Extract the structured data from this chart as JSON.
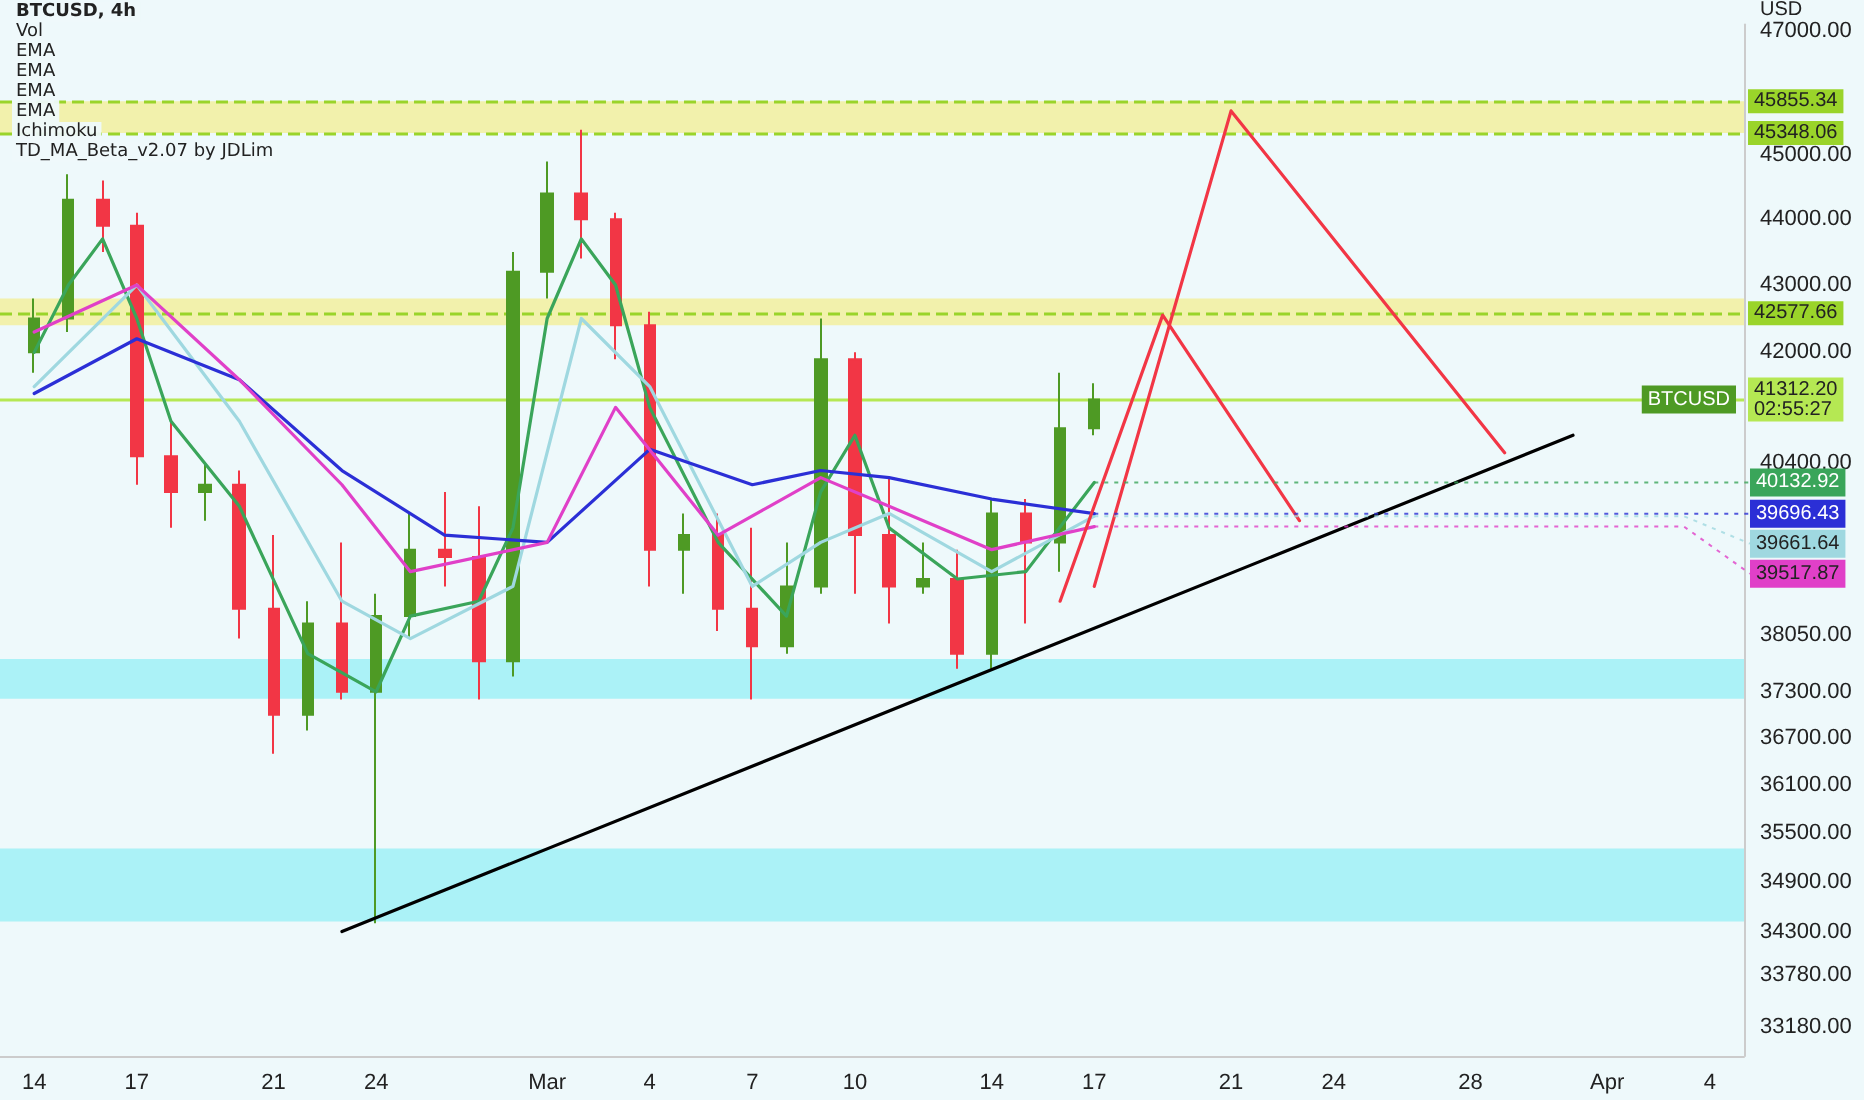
{
  "chart_data": {
    "type": "candlestick",
    "title": "BTCUSD, 4h",
    "ylabel": "USD",
    "log": true,
    "x": [
      "--02-14",
      "--02-15",
      "--02-16",
      "--02-17",
      "--02-18",
      "--02-19",
      "--02-20",
      "--02-21",
      "--02-22",
      "--02-23",
      "--02-24",
      "--02-25",
      "--02-26",
      "--02-27",
      "--02-28",
      "--03-01",
      "--03-02",
      "--03-03",
      "--03-04",
      "--03-05",
      "--03-06",
      "--03-07",
      "--03-08",
      "--03-09",
      "--03-10",
      "--03-11",
      "--03-12",
      "--03-13",
      "--03-14",
      "--03-15",
      "--03-16",
      "--03-17"
    ],
    "series": [
      {
        "name": "BTCUSD",
        "ohlc": [
          [
            42000,
            42800,
            41700,
            42500
          ],
          [
            42500,
            44700,
            42300,
            44300
          ],
          [
            44300,
            44600,
            43500,
            43900
          ],
          [
            43900,
            44100,
            40100,
            40500
          ],
          [
            40500,
            41000,
            39500,
            40000
          ],
          [
            40000,
            40400,
            39600,
            40100
          ],
          [
            40100,
            40300,
            38000,
            38400
          ],
          [
            38400,
            39400,
            36500,
            37000
          ],
          [
            37000,
            38500,
            36800,
            38200
          ],
          [
            38200,
            39300,
            37200,
            37300
          ],
          [
            37300,
            38600,
            34400,
            38300
          ],
          [
            38300,
            39700,
            38000,
            39200
          ],
          [
            39200,
            40000,
            38700,
            39100
          ],
          [
            39100,
            39800,
            37200,
            37700
          ],
          [
            37700,
            43500,
            37500,
            43200
          ],
          [
            43200,
            44900,
            42800,
            44400
          ],
          [
            44400,
            45400,
            43400,
            44000
          ],
          [
            44000,
            44100,
            41900,
            42400
          ],
          [
            42400,
            42600,
            38700,
            39200
          ],
          [
            39200,
            39700,
            38600,
            39400
          ],
          [
            39400,
            39700,
            38100,
            38400
          ],
          [
            38400,
            39500,
            37200,
            37900
          ],
          [
            37900,
            39300,
            37800,
            38700
          ],
          [
            38700,
            42500,
            38600,
            41900
          ],
          [
            41900,
            42000,
            38600,
            39400
          ],
          [
            39400,
            40200,
            38200,
            38700
          ],
          [
            38700,
            39300,
            38600,
            38800
          ],
          [
            38800,
            39200,
            37600,
            37800
          ],
          [
            37800,
            39900,
            37600,
            39700
          ],
          [
            39700,
            39900,
            38200,
            39300
          ],
          [
            39300,
            41700,
            38900,
            40900
          ],
          [
            40900,
            41550,
            40800,
            41312.2
          ]
        ]
      },
      {
        "type": "line",
        "color": "#3aa55a",
        "x": [
          "--02-14",
          "--02-15",
          "--02-16",
          "--02-17",
          "--02-18",
          "--02-20",
          "--02-22",
          "--02-24",
          "--02-25",
          "--02-27",
          "--02-28",
          "--03-01",
          "--03-02",
          "--03-03",
          "--03-04",
          "--03-06",
          "--03-08",
          "--03-09",
          "--03-10",
          "--03-11",
          "--03-13",
          "--03-15",
          "--03-17"
        ],
        "values": [
          42000,
          43000,
          43700,
          42500,
          41000,
          39800,
          37800,
          37300,
          38300,
          38500,
          39500,
          42500,
          43700,
          43000,
          41200,
          39300,
          38300,
          40000,
          40800,
          39500,
          38800,
          38900,
          40132.92
        ]
      },
      {
        "type": "line",
        "color": "#9fd8e0",
        "x": [
          "--02-14",
          "--02-17",
          "--02-20",
          "--02-23",
          "--02-25",
          "--02-28",
          "--03-02",
          "--03-04",
          "--03-07",
          "--03-09",
          "--03-11",
          "--03-14",
          "--03-17"
        ],
        "values": [
          41500,
          43000,
          41000,
          38500,
          38000,
          38700,
          42500,
          41500,
          38700,
          39300,
          39700,
          38900,
          39661.64
        ]
      },
      {
        "type": "line",
        "color": "#2b2fd6",
        "x": [
          "--02-14",
          "--02-17",
          "--02-20",
          "--02-23",
          "--02-26",
          "--03-01",
          "--03-04",
          "--03-07",
          "--03-09",
          "--03-11",
          "--03-14",
          "--03-17"
        ],
        "values": [
          41400,
          42200,
          41600,
          40300,
          39400,
          39300,
          40600,
          40100,
          40300,
          40200,
          39900,
          39696.43
        ]
      },
      {
        "type": "line",
        "color": "#e040c8",
        "x": [
          "--02-14",
          "--02-17",
          "--02-20",
          "--02-23",
          "--02-25",
          "--03-01",
          "--03-03",
          "--03-06",
          "--03-09",
          "--03-11",
          "--03-14",
          "--03-17"
        ],
        "values": [
          42300,
          43000,
          41600,
          40100,
          38900,
          39300,
          41200,
          39400,
          40200,
          39800,
          39200,
          39517.87
        ]
      },
      {
        "type": "line",
        "color": "#000000",
        "x": [
          "--02-23",
          "--03-31"
        ],
        "values": [
          34300,
          40800
        ]
      },
      {
        "type": "line",
        "color": "#f23645",
        "x": [
          "--03-16",
          "--03-19",
          "--03-23"
        ],
        "values": [
          38500,
          42550,
          39600
        ]
      },
      {
        "type": "line",
        "color": "#f23645",
        "x": [
          "--03-17",
          "--03-21",
          "--03-29"
        ],
        "values": [
          38700,
          45700,
          40550
        ]
      }
    ],
    "xlim": [
      "--02-13",
      "--04-05"
    ],
    "xticks": [
      {
        "value": "--02-14",
        "label": "14"
      },
      {
        "value": "--02-17",
        "label": "17"
      },
      {
        "value": "--02-21",
        "label": "21"
      },
      {
        "value": "--02-24",
        "label": "24"
      },
      {
        "value": "--03-01",
        "label": "Mar"
      },
      {
        "value": "--03-04",
        "label": "4"
      },
      {
        "value": "--03-07",
        "label": "7"
      },
      {
        "value": "--03-10",
        "label": "10"
      },
      {
        "value": "--03-14",
        "label": "14"
      },
      {
        "value": "--03-17",
        "label": "17"
      },
      {
        "value": "--03-21",
        "label": "21"
      },
      {
        "value": "--03-24",
        "label": "24"
      },
      {
        "value": "--03-28",
        "label": "28"
      },
      {
        "value": "--04-01",
        "label": "Apr"
      },
      {
        "value": "--04-04",
        "label": "4"
      }
    ],
    "ylim": [
      32840,
      47100
    ],
    "yticks": [
      {
        "value": 33180,
        "label": "33180.00"
      },
      {
        "value": 33780,
        "label": "33780.00"
      },
      {
        "value": 34300,
        "label": "34300.00"
      },
      {
        "value": 34900,
        "label": "34900.00"
      },
      {
        "value": 35500,
        "label": "35500.00"
      },
      {
        "value": 36100,
        "label": "36100.00"
      },
      {
        "value": 36700,
        "label": "36700.00"
      },
      {
        "value": 37300,
        "label": "37300.00"
      },
      {
        "value": 38050,
        "label": "38050.00"
      },
      {
        "value": 40400,
        "label": "40400.00"
      },
      {
        "value": 42000,
        "label": "42000.00"
      },
      {
        "value": 43000,
        "label": "43000.00"
      },
      {
        "value": 44000,
        "label": "44000.00"
      },
      {
        "value": 45000,
        "label": "45000.00"
      },
      {
        "value": 47000,
        "label": "47000.00"
      }
    ],
    "ref_lines": [
      {
        "axis": "y",
        "value": 45855.34,
        "label": "45855.34",
        "color": "#9ad42a",
        "line_style": "dashed"
      },
      {
        "axis": "y",
        "value": 45348.06,
        "label": "45348.06",
        "color": "#9ad42a",
        "line_style": "dashed"
      },
      {
        "axis": "y",
        "value": 42577.66,
        "label": "42577.66",
        "color": "#9ad42a",
        "line_style": "dashed"
      },
      {
        "axis": "y",
        "value": 41312.2,
        "label": "41312.20\n02:55:27",
        "color": "#b5e853",
        "line_style": "solid"
      }
    ],
    "bands": [
      {
        "axis": "y",
        "from": 45348.06,
        "to": 45855.34,
        "color": "#f3ee8a"
      },
      {
        "axis": "y",
        "from": 42400,
        "to": 42800,
        "color": "#f3ee8a"
      },
      {
        "axis": "y",
        "from": 37210,
        "to": 37730,
        "color": "#8ff0f5"
      },
      {
        "axis": "y",
        "from": 34420,
        "to": 35310,
        "color": "#8ff0f5"
      }
    ],
    "annotations": [
      "Vol",
      "EMA",
      "EMA",
      "EMA",
      "EMA",
      "Ichimoku",
      "TD_MA_Beta_v2.07 by JDLim",
      {
        "text": "40132.92",
        "x": "--03-17",
        "y": 40132.92
      },
      {
        "text": "39696.43",
        "x": "--03-17",
        "y": 39696.43
      },
      {
        "text": "39661.64",
        "x": "--03-17",
        "y": 39661.64
      },
      {
        "text": "39517.87",
        "x": "--03-17",
        "y": 39517.87
      }
    ]
  }
}
